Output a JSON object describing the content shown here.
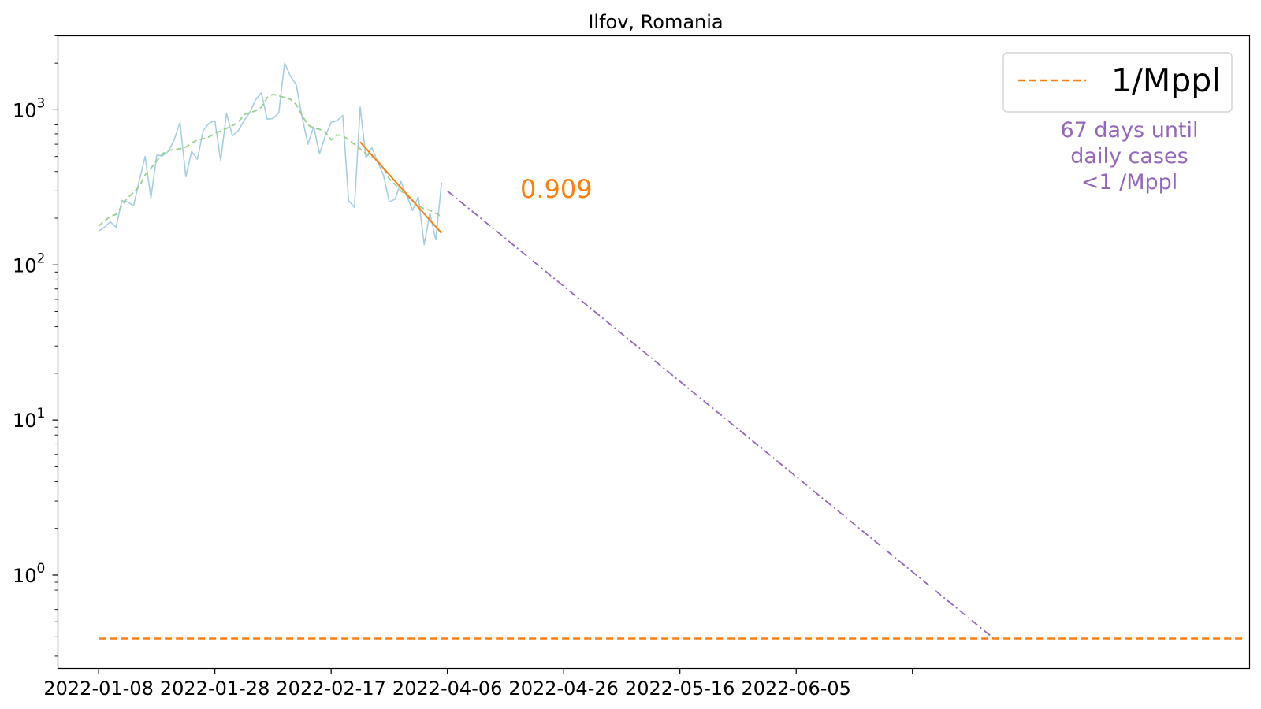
{
  "chart_data": {
    "type": "line",
    "title": "Ilfov, Romania",
    "xlabel": "",
    "ylabel": "",
    "y_scale": "log",
    "ylim": [
      0.25,
      3000
    ],
    "xlim": [
      "2022-01-01",
      "2022-07-25"
    ],
    "x_tick_labels": [
      "2022-01-08",
      "2022-01-28",
      "2022-02-17",
      "2022-04-06",
      "2022-04-26",
      "2022-05-16",
      "2022-06-05",
      ""
    ],
    "y_ticks": [
      {
        "value": 1,
        "base": "10",
        "exp": "0"
      },
      {
        "value": 10,
        "base": "10",
        "exp": "1"
      },
      {
        "value": 100,
        "base": "10",
        "exp": "2"
      },
      {
        "value": 1000,
        "base": "10",
        "exp": "3"
      }
    ],
    "legend": {
      "placement": "top-right",
      "entries": [
        {
          "label": "1/Mppl",
          "color": "#ff7f0e",
          "style": "dashed"
        }
      ]
    },
    "annotations": {
      "rate_label": "0.909",
      "days_text": [
        "67 days until",
        "daily cases",
        "<1 /Mppl"
      ]
    },
    "colors": {
      "raw": "#a6cee3",
      "smoothed": "#98d08f",
      "fit": "#ff7f0e",
      "projection": "#9467bd",
      "threshold": "#ff7f0e"
    },
    "series": [
      {
        "key": "raw",
        "style": "solid",
        "x": [
          "2022-01-08",
          "2022-01-09",
          "2022-01-10",
          "2022-01-11",
          "2022-01-12",
          "2022-01-13",
          "2022-01-14",
          "2022-01-15",
          "2022-01-16",
          "2022-01-17",
          "2022-01-18",
          "2022-01-19",
          "2022-01-20",
          "2022-01-21",
          "2022-01-22",
          "2022-01-23",
          "2022-01-24",
          "2022-01-25",
          "2022-01-26",
          "2022-01-27",
          "2022-01-28",
          "2022-01-29",
          "2022-01-30",
          "2022-01-31",
          "2022-02-01",
          "2022-02-02",
          "2022-02-03",
          "2022-02-04",
          "2022-02-05",
          "2022-02-06",
          "2022-02-07",
          "2022-02-08",
          "2022-02-09",
          "2022-02-10",
          "2022-02-11",
          "2022-02-12",
          "2022-02-13",
          "2022-02-14",
          "2022-02-15",
          "2022-02-16",
          "2022-02-17",
          "2022-02-18",
          "2022-02-19",
          "2022-02-20",
          "2022-02-21",
          "2022-02-22",
          "2022-02-23",
          "2022-02-24",
          "2022-02-25",
          "2022-02-26",
          "2022-02-27",
          "2022-02-28",
          "2022-03-01",
          "2022-03-02",
          "2022-03-03",
          "2022-03-04",
          "2022-03-05",
          "2022-03-06",
          "2022-03-07",
          "2022-03-08"
        ],
        "values": [
          165,
          175,
          190,
          175,
          260,
          255,
          240,
          350,
          500,
          270,
          510,
          505,
          540,
          640,
          830,
          370,
          540,
          480,
          735,
          820,
          850,
          470,
          950,
          680,
          730,
          850,
          960,
          1160,
          1290,
          870,
          880,
          960,
          2000,
          1650,
          1450,
          900,
          600,
          780,
          520,
          680,
          830,
          850,
          920,
          260,
          235,
          1040,
          490,
          570,
          460,
          380,
          255,
          265,
          345,
          280,
          225,
          275,
          135,
          215,
          145,
          340
        ]
      },
      {
        "key": "smoothed",
        "style": "dashed",
        "x": [
          "2022-01-08",
          "2022-01-09",
          "2022-01-10",
          "2022-01-11",
          "2022-01-12",
          "2022-01-13",
          "2022-01-14",
          "2022-01-15",
          "2022-01-16",
          "2022-01-17",
          "2022-01-18",
          "2022-01-19",
          "2022-01-20",
          "2022-01-21",
          "2022-01-22",
          "2022-01-23",
          "2022-01-24",
          "2022-01-25",
          "2022-01-26",
          "2022-01-27",
          "2022-01-28",
          "2022-01-29",
          "2022-01-30",
          "2022-01-31",
          "2022-02-01",
          "2022-02-02",
          "2022-02-03",
          "2022-02-04",
          "2022-02-05",
          "2022-02-06",
          "2022-02-07",
          "2022-02-08",
          "2022-02-09",
          "2022-02-10",
          "2022-02-11",
          "2022-02-12",
          "2022-02-13",
          "2022-02-14",
          "2022-02-15",
          "2022-02-16",
          "2022-02-17",
          "2022-02-18",
          "2022-02-19",
          "2022-02-20",
          "2022-02-21",
          "2022-02-22",
          "2022-02-23",
          "2022-02-24",
          "2022-02-25",
          "2022-02-26",
          "2022-02-27",
          "2022-02-28",
          "2022-03-01",
          "2022-03-02",
          "2022-03-03",
          "2022-03-04",
          "2022-03-05",
          "2022-03-06",
          "2022-03-07",
          "2022-03-08"
        ],
        "values": [
          178,
          192,
          205,
          212,
          240,
          272,
          292,
          320,
          380,
          420,
          468,
          520,
          548,
          555,
          560,
          575,
          610,
          640,
          650,
          670,
          705,
          730,
          760,
          790,
          830,
          930,
          960,
          985,
          1040,
          1200,
          1260,
          1230,
          1200,
          1170,
          1080,
          920,
          800,
          760,
          750,
          720,
          640,
          690,
          680,
          640,
          600,
          560,
          520,
          500,
          470,
          420,
          360,
          330,
          300,
          280,
          260,
          240,
          230,
          225,
          215,
          205
        ]
      },
      {
        "key": "fit",
        "style": "solid",
        "x": [
          "2022-02-22",
          "2022-03-08"
        ],
        "values": [
          620,
          160
        ]
      },
      {
        "key": "projection",
        "style": "dashdot",
        "x": [
          "2022-03-09",
          "2022-06-11"
        ],
        "values": [
          300,
          0.39
        ]
      },
      {
        "key": "threshold",
        "name": "1/Mppl",
        "style": "dashed",
        "x": [
          "2022-01-08",
          "2022-07-24"
        ],
        "values": [
          0.39,
          0.39
        ]
      }
    ]
  }
}
